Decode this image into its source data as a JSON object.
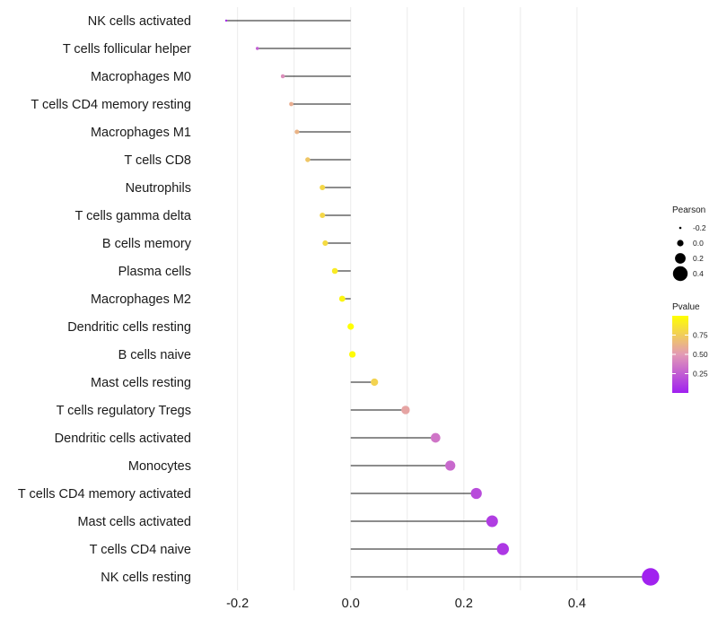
{
  "chart_data": {
    "type": "lollipop",
    "xlabel": "",
    "ylabel": "",
    "xlim": [
      -0.255,
      0.535
    ],
    "x_ticks": [
      -0.2,
      0.0,
      0.2,
      0.4
    ],
    "x_tick_labels": [
      "-0.2",
      "0.0",
      "0.2",
      "0.4"
    ],
    "x_minor_gridlines": [
      -0.1,
      0.1,
      0.3
    ],
    "baseline": 0.0,
    "categories": [
      "NK cells activated",
      "T cells follicular helper",
      "Macrophages M0",
      "T cells CD4 memory resting",
      "Macrophages M1",
      "T cells CD8",
      "Neutrophils",
      "T cells gamma delta",
      "B cells memory",
      "Plasma cells",
      "Macrophages M2",
      "Dendritic cells resting",
      "B cells naive",
      "Mast cells resting",
      "T cells regulatory  Tregs",
      "Dendritic cells activated",
      "Monocytes",
      "T cells CD4 memory activated",
      "Mast cells activated",
      "T cells CD4 naive",
      "NK cells resting"
    ],
    "pearson": [
      -0.22,
      -0.165,
      -0.12,
      -0.105,
      -0.095,
      -0.076,
      -0.05,
      -0.05,
      -0.045,
      -0.028,
      -0.015,
      0.0,
      0.003,
      0.042,
      0.097,
      0.15,
      0.176,
      0.222,
      0.25,
      0.269,
      0.53
    ],
    "pvalue": [
      0.05,
      0.25,
      0.45,
      0.6,
      0.63,
      0.72,
      0.8,
      0.8,
      0.82,
      0.9,
      0.95,
      1.0,
      0.98,
      0.78,
      0.55,
      0.35,
      0.3,
      0.18,
      0.12,
      0.1,
      0.01
    ],
    "size_legend": {
      "title": "Pearson",
      "values": [
        -0.2,
        0.0,
        0.2,
        0.4
      ],
      "labels": [
        "-0.2",
        "0.0",
        "0.2",
        "0.4"
      ]
    },
    "color_legend": {
      "title": "Pvalue",
      "ticks": [
        0.75,
        0.5,
        0.25
      ],
      "labels": [
        "0.75",
        "0.50",
        "0.25"
      ],
      "range": [
        0.0,
        1.0
      ],
      "low_color": "#A020F0",
      "high_color": "#FFFF00"
    },
    "colors": {
      "stem": "#1a1a1a",
      "grid": "#ebebeb",
      "background": "#ffffff"
    }
  }
}
